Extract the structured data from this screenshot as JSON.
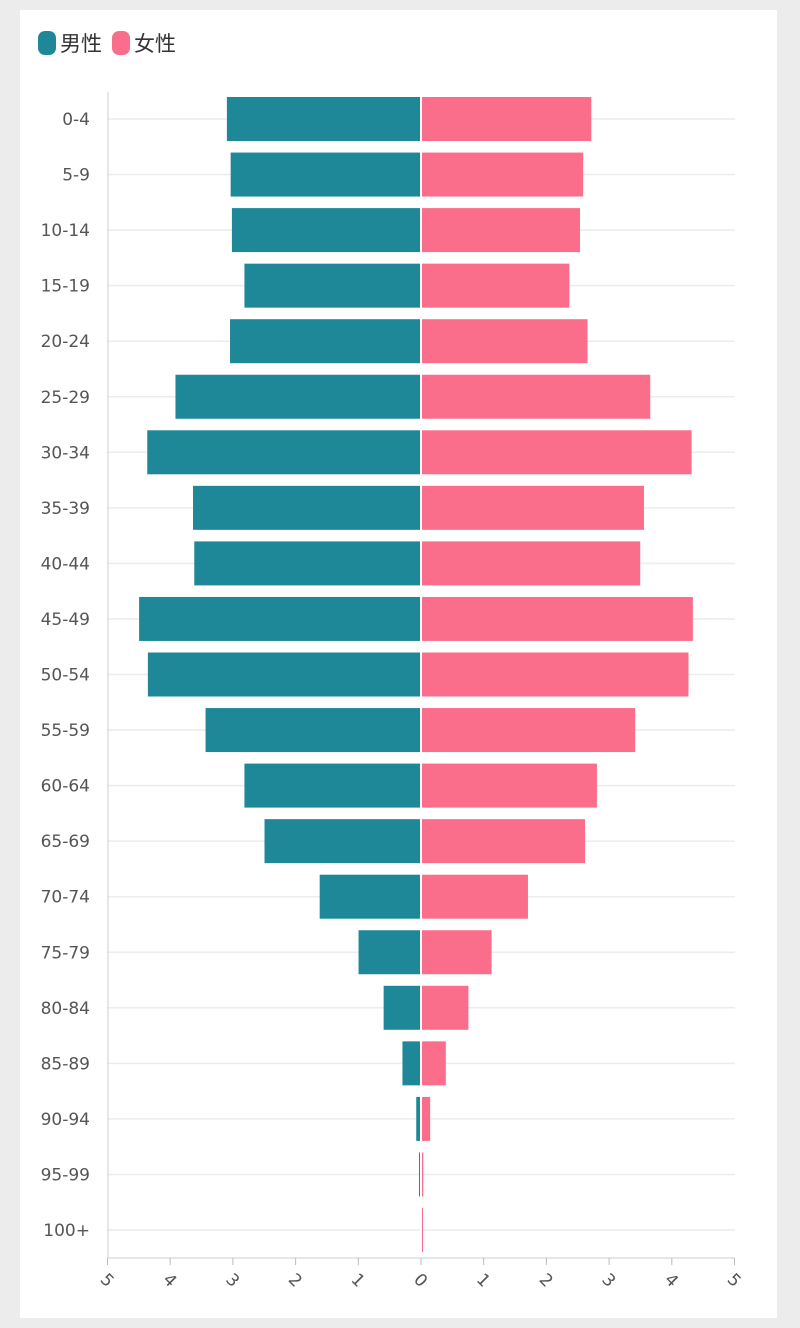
{
  "chart_data": {
    "type": "bar",
    "orientation": "horizontal",
    "subtype": "population-pyramid",
    "categories": [
      "0-4",
      "5-9",
      "10-14",
      "15-19",
      "20-24",
      "25-29",
      "30-34",
      "35-39",
      "40-44",
      "45-49",
      "50-54",
      "55-59",
      "60-64",
      "65-69",
      "70-74",
      "75-79",
      "80-84",
      "85-89",
      "90-94",
      "95-99",
      "100+"
    ],
    "series": [
      {
        "name": "男性",
        "color": "#1e8898",
        "values": [
          3.08,
          3.02,
          3.0,
          2.8,
          3.03,
          3.9,
          4.35,
          3.62,
          3.6,
          4.48,
          4.34,
          3.42,
          2.8,
          2.48,
          1.6,
          0.98,
          0.58,
          0.28,
          0.06,
          0.01,
          0.0
        ]
      },
      {
        "name": "女性",
        "color": "#fb6e8b",
        "values": [
          2.7,
          2.57,
          2.52,
          2.35,
          2.64,
          3.64,
          4.3,
          3.54,
          3.48,
          4.32,
          4.25,
          3.4,
          2.79,
          2.6,
          1.69,
          1.11,
          0.74,
          0.38,
          0.13,
          0.02,
          0.01
        ]
      }
    ],
    "xlim": [
      -5,
      5
    ],
    "x_ticks": [
      "5",
      "4",
      "3",
      "2",
      "1",
      "0",
      "1",
      "2",
      "3",
      "4",
      "5"
    ],
    "grid": true,
    "legend_position": "top-left",
    "title": "",
    "xlabel": "",
    "ylabel": ""
  }
}
